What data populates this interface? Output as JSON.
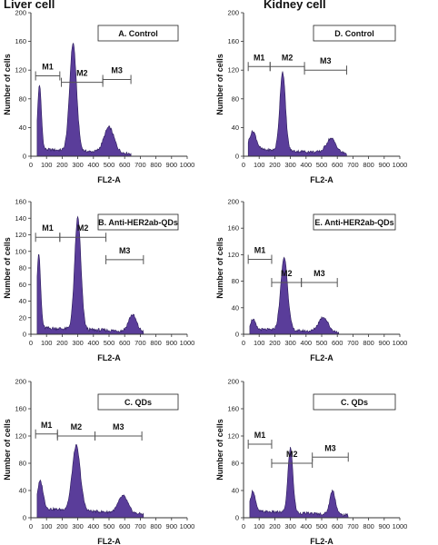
{
  "column_titles": {
    "left": "Liver cell",
    "right": "Kidney cell"
  },
  "style": {
    "fill_color": "#5a3d9a",
    "edge_color": "#2a1a5a",
    "gate_color": "#555555",
    "axis_color": "#333333"
  },
  "chart_data": [
    {
      "id": "A",
      "column": "left",
      "row": 0,
      "type": "area",
      "panel_label": "A. Control",
      "xlabel": "FL2-A",
      "ylabel": "Number of cells",
      "xlim": [
        0,
        1000
      ],
      "ylim": [
        0,
        200
      ],
      "x_ticks": [
        0,
        100,
        200,
        300,
        400,
        500,
        600,
        700,
        800,
        900,
        1000
      ],
      "y_ticks": [
        0,
        40,
        80,
        120,
        160,
        200
      ],
      "peaks": [
        {
          "x": 55,
          "height": 90,
          "width": 12
        },
        {
          "x": 270,
          "height": 150,
          "width": 22
        },
        {
          "x": 500,
          "height": 35,
          "width": 32
        }
      ],
      "baseline": 10,
      "x_range": [
        40,
        640
      ],
      "gates": [
        {
          "name": "M1",
          "x1": 30,
          "x2": 185,
          "y": 112
        },
        {
          "name": "M2",
          "x1": 195,
          "x2": 460,
          "y": 103
        },
        {
          "name": "M3",
          "x1": 460,
          "x2": 640,
          "y": 107
        }
      ]
    },
    {
      "id": "B",
      "column": "left",
      "row": 1,
      "type": "area",
      "panel_label": "B. Anti-HER2ab-QDs",
      "xlabel": "FL2-A",
      "ylabel": "Number of cells",
      "xlim": [
        0,
        1000
      ],
      "ylim": [
        0,
        160
      ],
      "x_ticks": [
        0,
        100,
        200,
        300,
        400,
        500,
        600,
        700,
        800,
        900,
        1000
      ],
      "y_ticks": [
        0,
        20,
        40,
        60,
        80,
        100,
        120,
        140,
        160
      ],
      "peaks": [
        {
          "x": 50,
          "height": 90,
          "width": 12
        },
        {
          "x": 300,
          "height": 135,
          "width": 20
        },
        {
          "x": 650,
          "height": 20,
          "width": 25
        }
      ],
      "baseline": 8,
      "x_range": [
        40,
        720
      ],
      "gates": [
        {
          "name": "M1",
          "x1": 30,
          "x2": 185,
          "y": 117
        },
        {
          "name": "M2",
          "x1": 185,
          "x2": 480,
          "y": 117
        },
        {
          "name": "M3",
          "x1": 480,
          "x2": 720,
          "y": 90
        }
      ]
    },
    {
      "id": "C",
      "column": "left",
      "row": 2,
      "type": "area",
      "panel_label": "C. QDs",
      "xlabel": "FL2-A",
      "ylabel": "Number of cells",
      "xlim": [
        0,
        1000
      ],
      "ylim": [
        0,
        200
      ],
      "x_ticks": [
        0,
        100,
        200,
        300,
        400,
        500,
        600,
        700,
        800,
        900,
        1000
      ],
      "y_ticks": [
        0,
        40,
        80,
        120,
        160,
        200
      ],
      "peaks": [
        {
          "x": 60,
          "height": 40,
          "width": 18
        },
        {
          "x": 290,
          "height": 95,
          "width": 26
        },
        {
          "x": 590,
          "height": 25,
          "width": 30
        }
      ],
      "baseline": 14,
      "x_range": [
        40,
        720
      ],
      "gates": [
        {
          "name": "M1",
          "x1": 30,
          "x2": 170,
          "y": 123
        },
        {
          "name": "M2",
          "x1": 170,
          "x2": 410,
          "y": 120
        },
        {
          "name": "M3",
          "x1": 410,
          "x2": 710,
          "y": 120
        }
      ]
    },
    {
      "id": "D",
      "column": "right",
      "row": 0,
      "type": "area",
      "panel_label": "D. Control",
      "xlabel": "FL2-A",
      "ylabel": "Number of cells",
      "xlim": [
        0,
        1000
      ],
      "ylim": [
        0,
        200
      ],
      "x_ticks": [
        0,
        100,
        200,
        300,
        400,
        500,
        600,
        700,
        800,
        900,
        1000
      ],
      "y_ticks": [
        0,
        40,
        80,
        120,
        160,
        200
      ],
      "peaks": [
        {
          "x": 60,
          "height": 25,
          "width": 22
        },
        {
          "x": 250,
          "height": 110,
          "width": 18
        },
        {
          "x": 560,
          "height": 20,
          "width": 30
        }
      ],
      "baseline": 10,
      "x_range": [
        30,
        660
      ],
      "gates": [
        {
          "name": "M1",
          "x1": 30,
          "x2": 170,
          "y": 125
        },
        {
          "name": "M2",
          "x1": 170,
          "x2": 390,
          "y": 125
        },
        {
          "name": "M3",
          "x1": 390,
          "x2": 660,
          "y": 120
        }
      ]
    },
    {
      "id": "E",
      "column": "right",
      "row": 1,
      "type": "area",
      "panel_label": "E. Anti-HER2ab-QDs",
      "xlabel": "FL2-A",
      "ylabel": "Number of cells",
      "xlim": [
        0,
        1000
      ],
      "ylim": [
        0,
        200
      ],
      "x_ticks": [
        0,
        100,
        200,
        300,
        400,
        500,
        600,
        700,
        800,
        900,
        1000
      ],
      "y_ticks": [
        0,
        40,
        80,
        120,
        160,
        200
      ],
      "peaks": [
        {
          "x": 60,
          "height": 15,
          "width": 15
        },
        {
          "x": 260,
          "height": 110,
          "width": 22
        },
        {
          "x": 510,
          "height": 22,
          "width": 30
        }
      ],
      "baseline": 8,
      "x_range": [
        40,
        610
      ],
      "gates": [
        {
          "name": "M1",
          "x1": 30,
          "x2": 180,
          "y": 113
        },
        {
          "name": "M2",
          "x1": 180,
          "x2": 370,
          "y": 78
        },
        {
          "name": "M3",
          "x1": 370,
          "x2": 600,
          "y": 78
        }
      ]
    },
    {
      "id": "F",
      "column": "right",
      "row": 2,
      "type": "area",
      "panel_label": "C. QDs",
      "xlabel": "FL2-A",
      "ylabel": "Number of cells",
      "xlim": [
        0,
        1000
      ],
      "ylim": [
        0,
        200
      ],
      "x_ticks": [
        0,
        100,
        200,
        300,
        400,
        500,
        600,
        700,
        800,
        900,
        1000
      ],
      "y_ticks": [
        0,
        40,
        80,
        120,
        160,
        200
      ],
      "peaks": [
        {
          "x": 60,
          "height": 30,
          "width": 15
        },
        {
          "x": 300,
          "height": 95,
          "width": 16
        },
        {
          "x": 570,
          "height": 35,
          "width": 18
        }
      ],
      "baseline": 10,
      "x_range": [
        40,
        670
      ],
      "gates": [
        {
          "name": "M1",
          "x1": 30,
          "x2": 180,
          "y": 108
        },
        {
          "name": "M2",
          "x1": 180,
          "x2": 440,
          "y": 80
        },
        {
          "name": "M3",
          "x1": 440,
          "x2": 670,
          "y": 89
        }
      ]
    }
  ]
}
